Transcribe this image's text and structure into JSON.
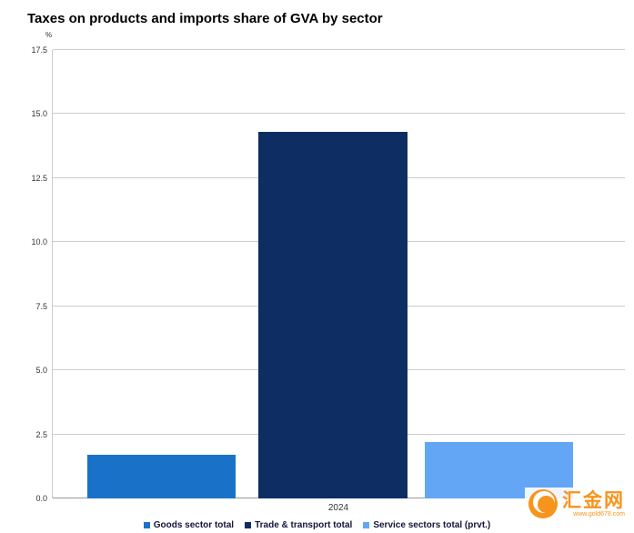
{
  "title": "Taxes on products and imports share of GVA by sector",
  "chart_data": {
    "type": "bar",
    "categories": [
      "2024"
    ],
    "series": [
      {
        "name": "Goods sector total",
        "color": "#1a72c8",
        "values": [
          1.7
        ]
      },
      {
        "name": "Trade & transport total",
        "color": "#0e2d62",
        "values": [
          14.3
        ]
      },
      {
        "name": "Service sectors total (prvt.)",
        "color": "#63a6f6",
        "values": [
          2.2
        ]
      }
    ],
    "ylabel": "%",
    "xlabel": "",
    "ylim": [
      0,
      17.5
    ],
    "yticks": [
      0.0,
      2.5,
      5.0,
      7.5,
      10.0,
      12.5,
      15.0,
      17.5
    ],
    "grid": true,
    "legend_position": "bottom"
  },
  "axis": {
    "x_label": "2024"
  },
  "watermark": {
    "name": "汇金网",
    "url": "www.gold678.com",
    "color": "#f7941d"
  }
}
